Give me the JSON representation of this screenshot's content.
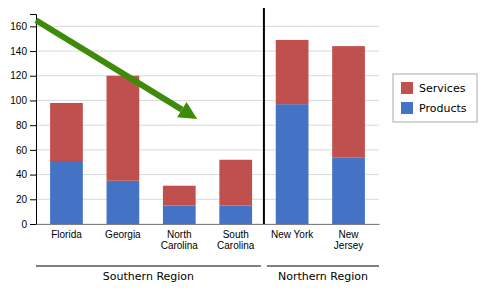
{
  "chart_data": {
    "type": "bar",
    "stacked": true,
    "categories": [
      "Florida",
      "Georgia",
      "North\nCarolina",
      "South\nCarolina",
      "New York",
      "New\nJersey"
    ],
    "series": [
      {
        "name": "Products",
        "color": "#4472C4",
        "values": [
          51,
          35,
          15,
          15,
          97,
          54
        ]
      },
      {
        "name": "Services",
        "color": "#C0504D",
        "values": [
          47,
          85,
          16,
          37,
          52,
          90
        ]
      }
    ],
    "ylim": [
      0,
      170
    ],
    "yticks": [
      0,
      20,
      40,
      60,
      80,
      100,
      120,
      140,
      160
    ],
    "grid": true,
    "legend": "right",
    "annotations": [
      "Southern Region",
      "Northern Region"
    ]
  }
}
